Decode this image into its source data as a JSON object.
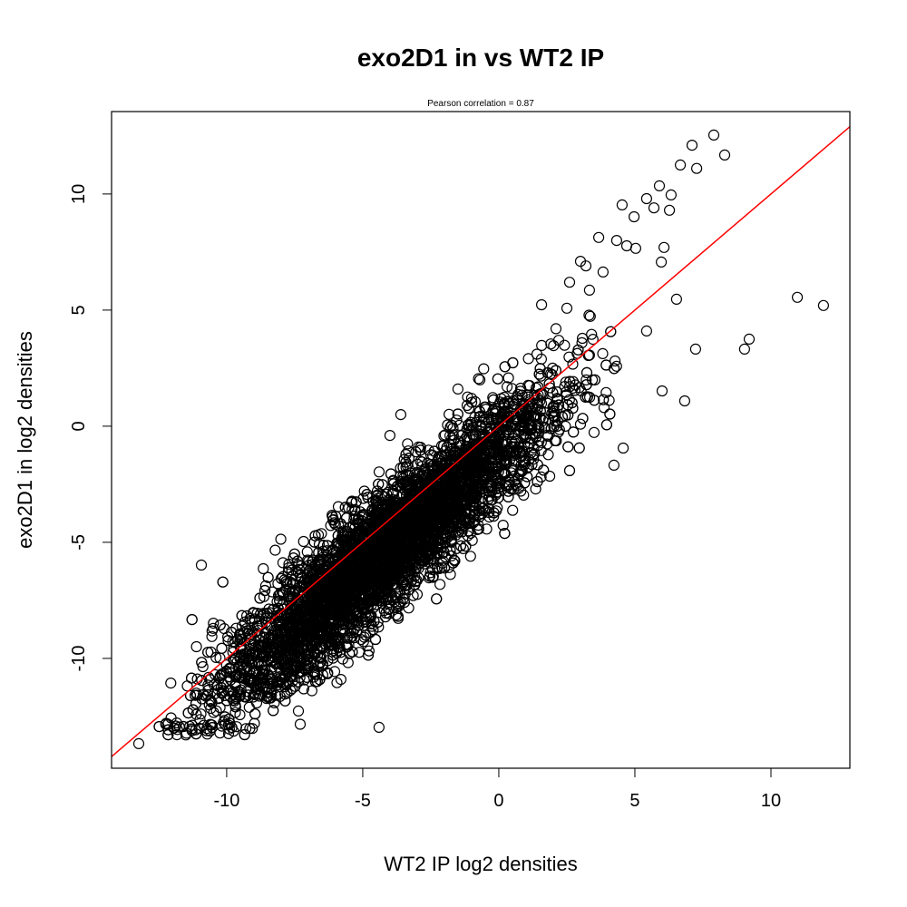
{
  "chart_data": {
    "type": "scatter",
    "title": "exo2D1 in vs WT2 IP",
    "subtitle": "Pearson correlation =  0.87",
    "xlabel": "WT2 IP log2 densities",
    "ylabel": "exo2D1 in log2 densities",
    "xlim": [
      -14.23,
      12.9
    ],
    "ylim": [
      -14.73,
      13.55
    ],
    "xticks": [
      -10,
      -5,
      0,
      5,
      10
    ],
    "yticks": [
      -10,
      -5,
      0,
      5,
      10
    ],
    "grid": false,
    "marker": "open-circle",
    "fit_line": {
      "slope": 1.0,
      "intercept": 0.0,
      "color": "#ff0000"
    },
    "dense_cloud": {
      "n": 6000,
      "x_mean": -4.2,
      "x_sd": 3.0,
      "x_min": -12.5,
      "x_max": 4.5,
      "y_offset_from_fit": -1.2,
      "y_sd": 1.3
    },
    "points": [
      [
        7.9,
        12.54
      ],
      [
        7.1,
        12.1
      ],
      [
        8.3,
        11.68
      ],
      [
        6.67,
        11.25
      ],
      [
        7.27,
        11.1
      ],
      [
        5.9,
        10.35
      ],
      [
        6.33,
        9.96
      ],
      [
        5.43,
        9.8
      ],
      [
        4.53,
        9.53
      ],
      [
        4.97,
        9.02
      ],
      [
        5.7,
        9.4
      ],
      [
        6.27,
        9.3
      ],
      [
        3.67,
        8.13
      ],
      [
        4.33,
        8.0
      ],
      [
        4.7,
        7.77
      ],
      [
        5.03,
        7.66
      ],
      [
        6.07,
        7.7
      ],
      [
        5.97,
        7.07
      ],
      [
        11.93,
        5.2
      ],
      [
        10.97,
        5.55
      ],
      [
        6.53,
        5.47
      ],
      [
        5.43,
        4.1
      ],
      [
        7.23,
        3.32
      ],
      [
        9.2,
        3.75
      ],
      [
        9.03,
        3.32
      ],
      [
        6.0,
        1.52
      ],
      [
        6.83,
        1.09
      ],
      [
        -10.93,
        -5.98
      ],
      [
        -13.23,
        -13.67
      ],
      [
        -9.93,
        -13.24
      ],
      [
        -4.4,
        -12.97
      ],
      [
        4.57,
        -0.94
      ],
      [
        4.23,
        -1.68
      ],
      [
        3.5,
        -0.27
      ],
      [
        4.27,
        2.81
      ],
      [
        2.5,
        5.08
      ],
      [
        1.57,
        5.23
      ],
      [
        3.33,
        5.86
      ],
      [
        3.83,
        6.64
      ],
      [
        3.2,
        6.9
      ],
      [
        3.0,
        7.1
      ],
      [
        2.6,
        6.2
      ],
      [
        2.1,
        4.2
      ],
      [
        1.4,
        3.1
      ],
      [
        2.2,
        3.7
      ],
      [
        -1.5,
        1.6
      ],
      [
        -1.0,
        1.2
      ],
      [
        -3.6,
        0.5
      ],
      [
        -4.0,
        -0.4
      ]
    ],
    "colors": {
      "points": "#000000",
      "line": "#ff0000",
      "axes": "#000000"
    }
  }
}
